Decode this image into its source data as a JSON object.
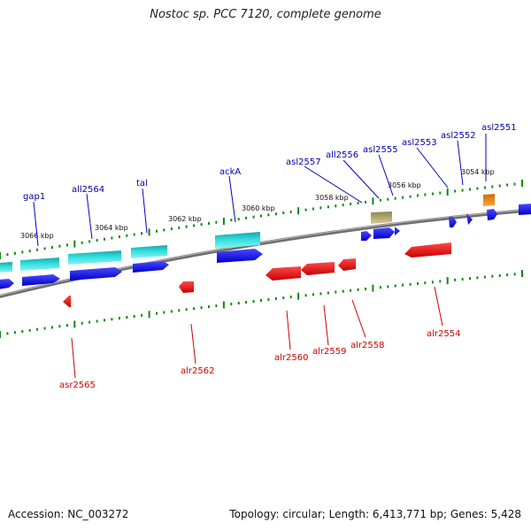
{
  "title": "Nostoc sp. PCC 7120, complete genome",
  "footer": {
    "accession": "Accession: NC_003272",
    "stats": "Topology: circular; Length: 6,413,771 bp; Genes: 5,428"
  },
  "kbp_marks": [
    "3054 kbp",
    "3056 kbp",
    "3058 kbp",
    "3060 kbp",
    "3062 kbp",
    "3064 kbp",
    "3066 kbp"
  ],
  "forward_genes": [
    "asl2551",
    "asl2552",
    "asl2553",
    "asl2555",
    "all2556",
    "asl2557",
    "ackA",
    "tal",
    "all2564",
    "gap1"
  ],
  "reverse_genes": [
    "alr2554",
    "alr2558",
    "alr2559",
    "alr2560",
    "alr2562",
    "asr2565"
  ],
  "colors": {
    "forward_label": "#0000aa",
    "reverse_label": "#cc0000",
    "gene_blue": "#0000ee",
    "gene_red": "#ee0000",
    "gene_cyan": "#19c6c6",
    "gene_orange": "#f08a00",
    "gene_olive": "#b5aa6a",
    "tick_green": "#118811",
    "backbone": "#888888"
  }
}
